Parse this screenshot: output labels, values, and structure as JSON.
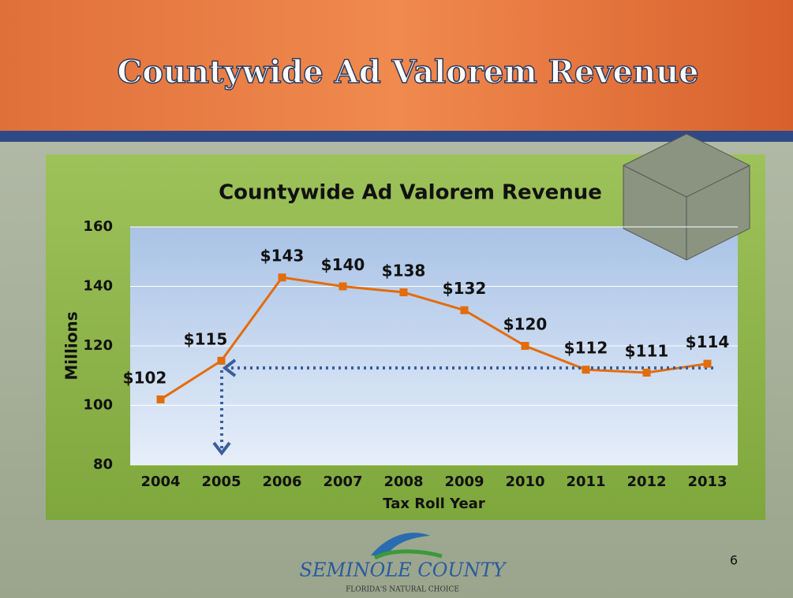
{
  "slide_title": "Countywide Ad Valorem Revenue",
  "chart_data": {
    "type": "line",
    "title": "Countywide Ad Valorem Revenue",
    "x_label": "Tax Roll Year",
    "y_label": "Millions",
    "categories": [
      "2004",
      "2005",
      "2006",
      "2007",
      "2008",
      "2009",
      "2010",
      "2011",
      "2012",
      "2013"
    ],
    "values": [
      102,
      115,
      143,
      140,
      138,
      132,
      120,
      112,
      111,
      114
    ],
    "value_labels": [
      "$102",
      "$115",
      "$143",
      "$140",
      "$138",
      "$132",
      "$120",
      "$112",
      "$111",
      "$114"
    ],
    "color": "#e46c0a",
    "ylim": [
      80,
      160
    ],
    "yticks": [
      80,
      100,
      120,
      140,
      160
    ],
    "grid": true
  },
  "logo": {
    "name": "SEMINOLE COUNTY",
    "tagline": "FLORIDA'S NATURAL CHOICE"
  },
  "page_number": "6"
}
